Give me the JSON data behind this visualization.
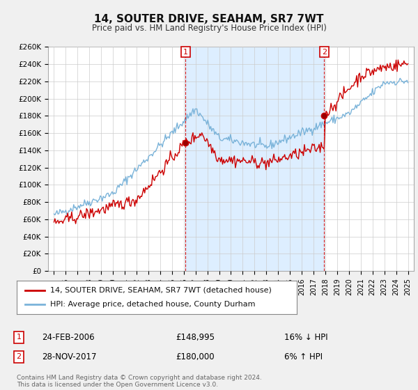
{
  "title": "14, SOUTER DRIVE, SEAHAM, SR7 7WT",
  "subtitle": "Price paid vs. HM Land Registry's House Price Index (HPI)",
  "legend_line1": "14, SOUTER DRIVE, SEAHAM, SR7 7WT (detached house)",
  "legend_line2": "HPI: Average price, detached house, County Durham",
  "annotation1_date": "24-FEB-2006",
  "annotation1_price": "£148,995",
  "annotation1_hpi": "16% ↓ HPI",
  "annotation2_date": "28-NOV-2017",
  "annotation2_price": "£180,000",
  "annotation2_hpi": "6% ↑ HPI",
  "footer": "Contains HM Land Registry data © Crown copyright and database right 2024.\nThis data is licensed under the Open Government Licence v3.0.",
  "sale1_year": 2006.15,
  "sale1_price": 148995,
  "sale2_year": 2017.9,
  "sale2_price": 180000,
  "red_color": "#cc0000",
  "blue_color": "#7ab3d9",
  "shade_color": "#ddeeff",
  "background_color": "#f0f0f0",
  "plot_bg_color": "#ffffff",
  "ylim": [
    0,
    260000
  ],
  "yticks": [
    0,
    20000,
    40000,
    60000,
    80000,
    100000,
    120000,
    140000,
    160000,
    180000,
    200000,
    220000,
    240000,
    260000
  ],
  "xlim_start": 1994.5,
  "xlim_end": 2025.5
}
